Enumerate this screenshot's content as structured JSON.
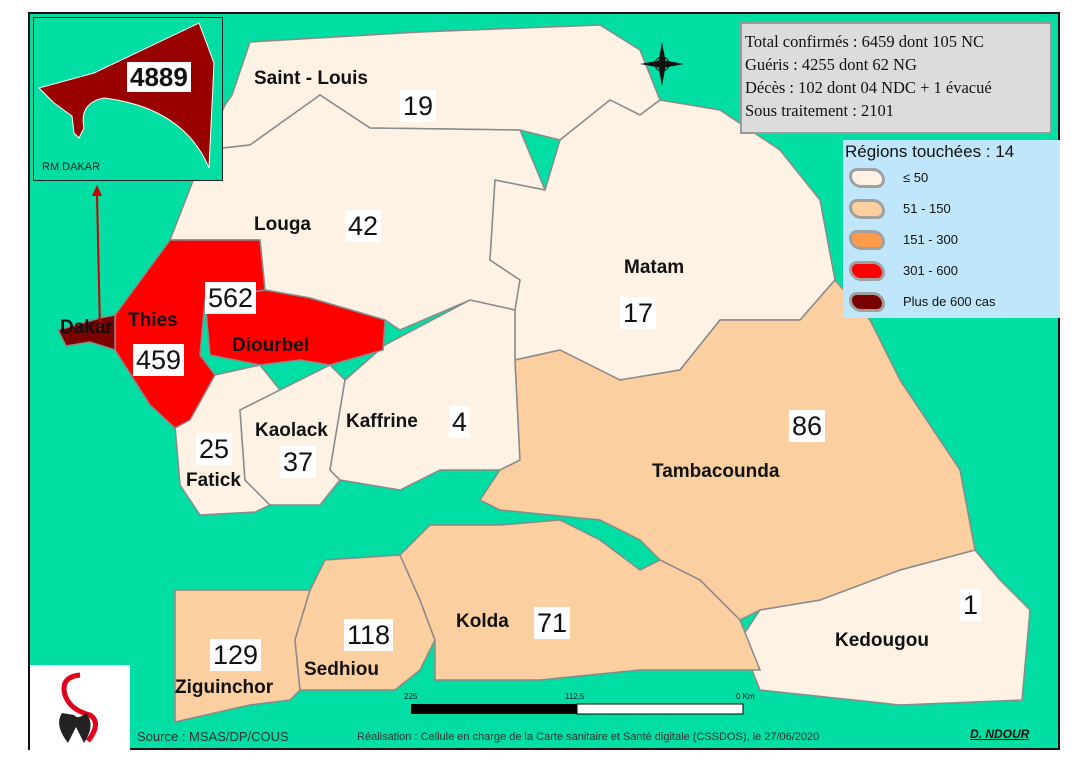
{
  "info_box": {
    "lines": [
      "Total confirmés : 6459  dont 105 NC",
      "Guéris : 4255 dont 62 NG",
      "Décès : 102 dont 04 NDC + 1 évacué",
      "Sous traitement : 2101"
    ]
  },
  "legend": {
    "title": "Régions touchées : 14",
    "items": [
      {
        "label": "≤ 50",
        "color": "#fdf2e4"
      },
      {
        "label": "51 - 150",
        "color": "#fbcf9f"
      },
      {
        "label": "151 - 300",
        "color": "#fd9b4a"
      },
      {
        "label": "301 - 600",
        "color": "#ff0000"
      },
      {
        "label": "Plus de 600 cas",
        "color": "#7a0000"
      }
    ]
  },
  "colors": {
    "sea": "#00dea3",
    "class_le50": "#fdf2e4",
    "class_51_150": "#fbcf9f",
    "class_301_600": "#ff0000",
    "class_600plus": "#990000"
  },
  "regions": {
    "saint_louis": {
      "name": "Saint - Louis",
      "cases": "19"
    },
    "louga": {
      "name": "Louga",
      "cases": "42"
    },
    "matam": {
      "name": "Matam",
      "cases": "17"
    },
    "thies": {
      "name": "Thies",
      "cases": "459"
    },
    "diourbel": {
      "name": "Diourbel",
      "cases": "562"
    },
    "dakar": {
      "name": "Dakar"
    },
    "fatick": {
      "name": "Fatick",
      "cases": "25"
    },
    "kaolack": {
      "name": "Kaolack",
      "cases": "37"
    },
    "kaffrine": {
      "name": "Kaffrine",
      "cases": "4"
    },
    "tambacounda": {
      "name": "Tambacounda",
      "cases": "86"
    },
    "kolda": {
      "name": "Kolda",
      "cases": "71"
    },
    "sedhiou": {
      "name": "Sedhiou",
      "cases": "118"
    },
    "ziguinchor": {
      "name": "Ziguinchor",
      "cases": "129"
    },
    "kedougou": {
      "name": "Kedougou",
      "cases": "1"
    }
  },
  "inset": {
    "label": "RM DAKAR",
    "cases": "4889"
  },
  "scale": {
    "labels": [
      "225",
      "112,5",
      "0 Km"
    ]
  },
  "footer": {
    "source": "Source : MSAS/DP/COUS",
    "realisation": "Réalisation : Cellule en charge de la Carte sanitaire et Santé digitale (CSSDOS), le 27/06/2020",
    "author": "D. NDOUR"
  }
}
